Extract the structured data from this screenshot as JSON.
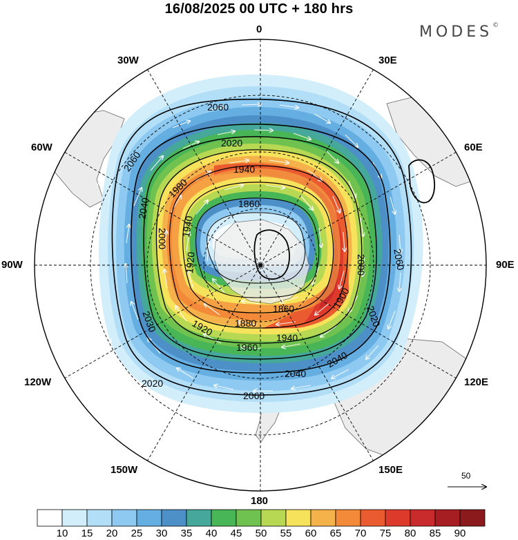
{
  "title": "16/08/2025  00 UTC  + 180 hrs",
  "brand": "MODES",
  "brand_mark": "©",
  "longitude_labels": {
    "n": "0",
    "s": "180",
    "e": "90E",
    "w": "90W",
    "e30": "30E",
    "e60": "60E",
    "e120": "120E",
    "e150": "150E",
    "w30": "30W",
    "w60": "60W",
    "w120": "120W",
    "w150": "150W"
  },
  "contour_labels": [
    "2060",
    "2060",
    "2060",
    "2060",
    "2040",
    "2040",
    "2040",
    "2030",
    "2020",
    "2020",
    "2020",
    "2000",
    "2000",
    "1980",
    "1960",
    "1940",
    "1940",
    "1940",
    "1920",
    "1920",
    "1900",
    "1880",
    "1860",
    "1860"
  ],
  "vector_reference": {
    "value": "50"
  },
  "colorbar": {
    "labels": [
      "10",
      "15",
      "20",
      "25",
      "30",
      "35",
      "40",
      "45",
      "50",
      "55",
      "60",
      "65",
      "70",
      "75",
      "80",
      "85",
      "90"
    ],
    "colors": [
      "#ffffff",
      "#d3eefb",
      "#b2dff7",
      "#8dc9f0",
      "#65aee2",
      "#4d90c8",
      "#46a89a",
      "#48b556",
      "#6fc24f",
      "#b7d852",
      "#f6e35b",
      "#f6b24a",
      "#f28a3a",
      "#ea5b30",
      "#dd3a2b",
      "#c92a2b",
      "#a61e22",
      "#8a1a1c"
    ]
  }
}
